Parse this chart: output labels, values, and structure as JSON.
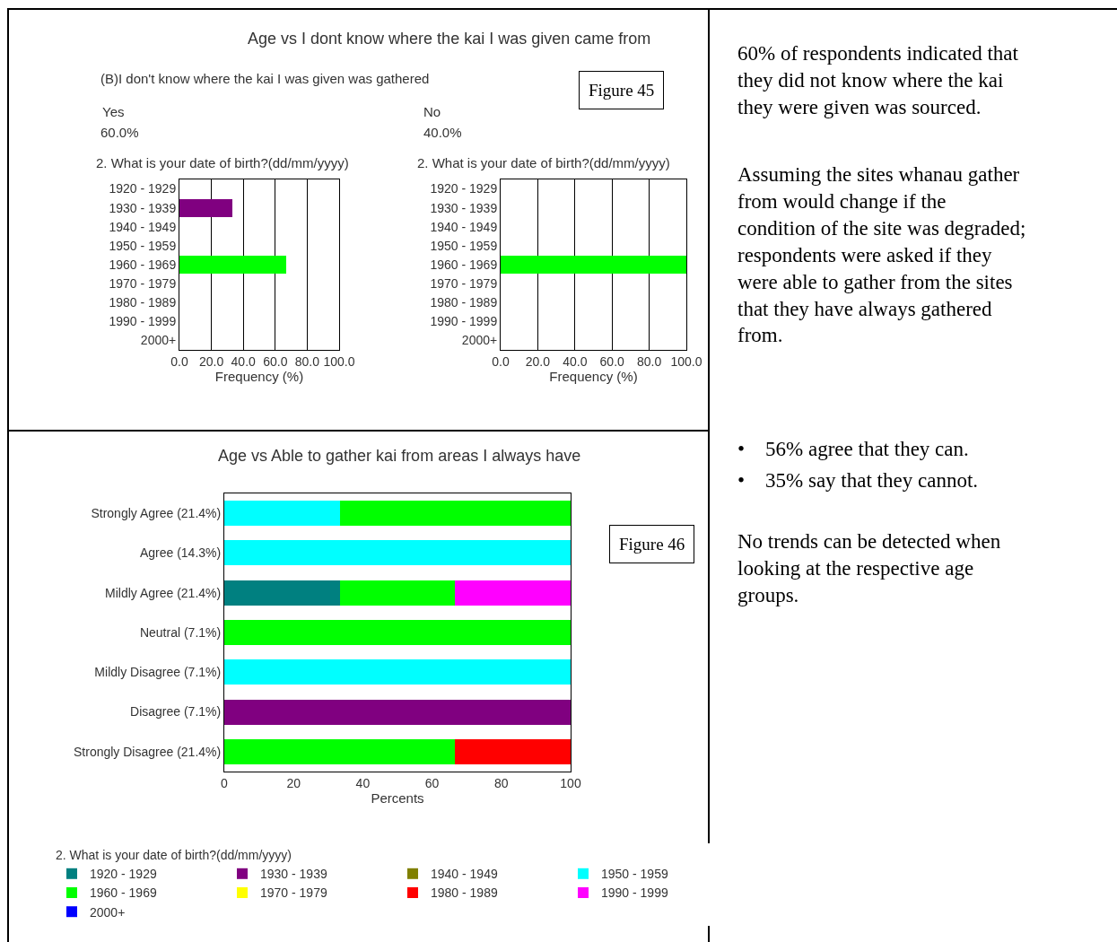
{
  "chart_data": [
    {
      "type": "bar",
      "orientation": "horizontal",
      "title": "Age vs I dont know where the kai I was given came from",
      "subtitle": "(B)I don't know where the kai I was given was gathered",
      "ylabel": "2. What is your date of birth?(dd/mm/yyyy)",
      "xlabel": "Frequency (%)",
      "annotations": [
        "Yes",
        "60.0%",
        "Figure 45"
      ],
      "categories": [
        "1920 - 1929",
        "1930 - 1939",
        "1940 - 1949",
        "1950 - 1959",
        "1960 - 1969",
        "1970 - 1979",
        "1980 - 1989",
        "1990 - 1999",
        "2000+"
      ],
      "values": [
        null,
        33.3,
        null,
        null,
        66.7,
        null,
        null,
        null,
        null
      ],
      "colors": [
        "#008080",
        "#800080",
        "#808000",
        "#00ffff",
        "#00ff00",
        "#ffff00",
        "#ff0000",
        "#ff00ff",
        "#0000ff"
      ],
      "xlim": [
        0,
        100
      ],
      "xticks": [
        {
          "value": 0,
          "label": "0.0"
        },
        {
          "value": 20,
          "label": "20.0"
        },
        {
          "value": 40,
          "label": "40.0"
        },
        {
          "value": 60,
          "label": "60.0"
        },
        {
          "value": 80,
          "label": "80.0"
        },
        {
          "value": 100,
          "label": "100.0"
        }
      ],
      "grid": "x",
      "legend": false
    },
    {
      "type": "bar",
      "orientation": "horizontal",
      "ylabel": "2. What is your date of birth?(dd/mm/yyyy)",
      "xlabel": "Frequency (%)",
      "annotations": [
        "No",
        "40.0%"
      ],
      "categories": [
        "1920 - 1929",
        "1930 - 1939",
        "1940 - 1949",
        "1950 - 1959",
        "1960 - 1969",
        "1970 - 1979",
        "1980 - 1989",
        "1990 - 1999",
        "2000+"
      ],
      "values": [
        null,
        null,
        null,
        null,
        100,
        null,
        null,
        null,
        null
      ],
      "colors": [
        "#008080",
        "#800080",
        "#808000",
        "#00ffff",
        "#00ff00",
        "#ffff00",
        "#ff0000",
        "#ff00ff",
        "#0000ff"
      ],
      "xlim": [
        0,
        100
      ],
      "xticks": [
        {
          "value": 0,
          "label": "0.0"
        },
        {
          "value": 20,
          "label": "20.0"
        },
        {
          "value": 40,
          "label": "40.0"
        },
        {
          "value": 60,
          "label": "60.0"
        },
        {
          "value": 80,
          "label": "80.0"
        },
        {
          "value": 100,
          "label": "100.0"
        }
      ],
      "grid": "x",
      "legend": false
    },
    {
      "type": "bar",
      "orientation": "horizontal",
      "stacked": true,
      "title": "Age vs Able to gather kai from areas I always have",
      "xlabel": "Percents",
      "legend_title": "2. What is your date of birth?(dd/mm/yyyy)",
      "annotations": [
        "Figure 46"
      ],
      "categories": [
        "Strongly Agree (21.4%)",
        "Agree (14.3%)",
        "Mildly Agree (21.4%)",
        "Neutral (7.1%)",
        "Mildly Disagree (7.1%)",
        "Disagree (7.1%)",
        "Strongly Disagree (21.4%)"
      ],
      "series": [
        {
          "name": "1920 - 1929",
          "color": "#008080",
          "values": [
            null,
            null,
            33.3,
            null,
            null,
            null,
            null
          ]
        },
        {
          "name": "1930 - 1939",
          "color": "#800080",
          "values": [
            null,
            null,
            null,
            null,
            null,
            100,
            null
          ]
        },
        {
          "name": "1940 - 1949",
          "color": "#808000",
          "values": [
            null,
            null,
            null,
            null,
            null,
            null,
            null
          ]
        },
        {
          "name": "1950 - 1959",
          "color": "#00ffff",
          "values": [
            33.3,
            100,
            null,
            null,
            100,
            null,
            null
          ]
        },
        {
          "name": "1960 - 1969",
          "color": "#00ff00",
          "values": [
            66.7,
            null,
            33.3,
            100,
            null,
            null,
            66.7
          ]
        },
        {
          "name": "1970 - 1979",
          "color": "#ffff00",
          "values": [
            null,
            null,
            null,
            null,
            null,
            null,
            null
          ]
        },
        {
          "name": "1980 - 1989",
          "color": "#ff0000",
          "values": [
            null,
            null,
            null,
            null,
            null,
            null,
            33.3
          ]
        },
        {
          "name": "1990 - 1999",
          "color": "#ff00ff",
          "values": [
            null,
            null,
            33.3,
            null,
            null,
            null,
            null
          ]
        },
        {
          "name": "2000+",
          "color": "#0000ff",
          "values": [
            null,
            null,
            null,
            null,
            null,
            null,
            null
          ]
        }
      ],
      "xlim": [
        0,
        100
      ],
      "xticks": [
        0,
        20,
        40,
        60,
        80,
        100
      ],
      "grid": false,
      "legend": "bottom"
    },
    {
      "type": "other",
      "annotations": [
        "60% of respondents indicated that\nthey did not know where the kai\nthey were given was sourced.",
        "Assuming the sites whanau gather\nfrom would change if the\ncondition of the site was degraded;\nrespondents were asked if they\nwere able to gather from the sites\nthat they have always gathered\nfrom.",
        "•    56% agree that they can.",
        "•    35% say that they cannot.",
        "No trends can be detected when\nlooking at the respective age\ngroups."
      ]
    }
  ]
}
